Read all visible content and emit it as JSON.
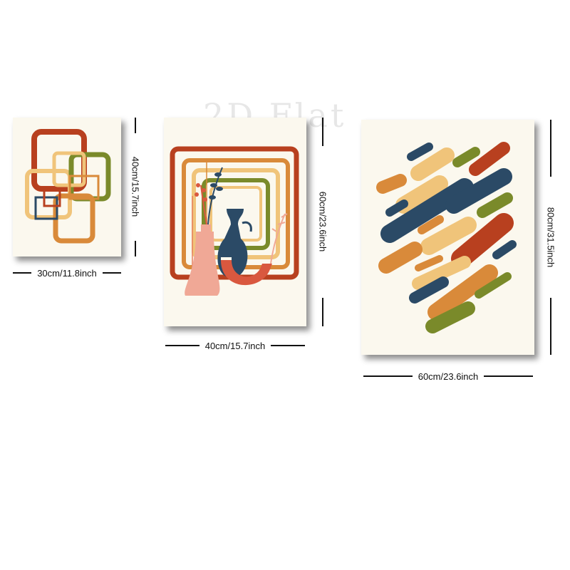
{
  "watermark": "2D Flat",
  "posters": [
    {
      "name": "abstract-squares-print",
      "width_label": "30cm/11.8inch",
      "height_label": "40cm/15.7inch"
    },
    {
      "name": "vases-print",
      "width_label": "40cm/15.7inch",
      "height_label": "60cm/23.6inch"
    },
    {
      "name": "brushstrokes-print",
      "width_label": "60cm/23.6inch",
      "height_label": "80cm/31.5inch"
    }
  ],
  "colors": {
    "cream": "#fbf8ee",
    "rust": "#b8401f",
    "orange": "#d98a3a",
    "mustard": "#f0c47a",
    "olive": "#7a8a2a",
    "navy": "#2b4a66",
    "pink": "#f0a896",
    "coral": "#d9583f"
  }
}
